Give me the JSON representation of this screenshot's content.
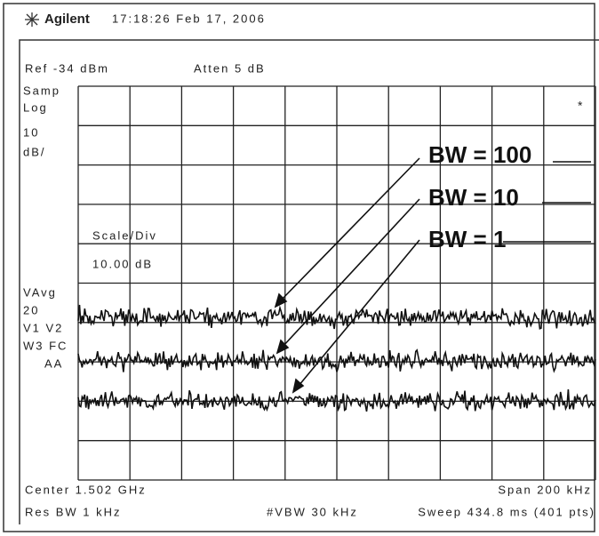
{
  "header": {
    "brand": "Agilent",
    "timestamp": "17:18:26  Feb 17, 2006"
  },
  "settings": {
    "ref": "Ref -34 dBm",
    "atten": "Atten 5 dB"
  },
  "left_labels": [
    "Samp",
    "Log",
    "10",
    "dB/",
    "VAvg",
    "20",
    "V1  V2",
    "W3  FC",
    "AA"
  ],
  "display": {
    "flag": "*",
    "scale_label": "Scale/Div",
    "scale_value": "10.00 dB"
  },
  "annotations": [
    "BW = 100",
    "BW = 10",
    "BW = 1"
  ],
  "footer": {
    "center": "Center 1.502 GHz",
    "span": "Span 200 kHz",
    "res_bw": "Res BW 1 kHz",
    "vbw": "#VBW 30 kHz",
    "sweep": "Sweep 434.8 ms (401 pts)"
  }
}
